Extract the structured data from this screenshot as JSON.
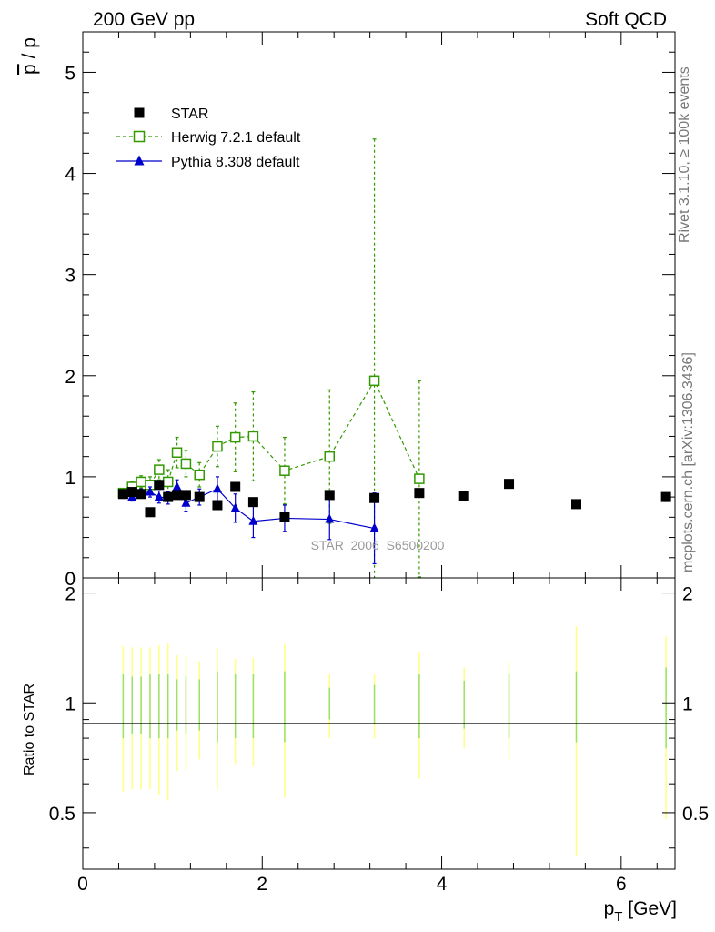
{
  "header": {
    "left_title": "200 GeV pp",
    "right_title": "Soft QCD"
  },
  "side_labels": {
    "rivet": "Rivet 3.1.10, ≥ 100k events",
    "mcplots": "mcplots.cern.ch [arXiv:1306.3436]"
  },
  "watermark": "STAR_2006_S6500200",
  "chart_data": [
    {
      "type": "scatter",
      "panel": "main",
      "ylabel": "p̅ / p",
      "ylabel_parts": {
        "bar": "p",
        "rest": " / p"
      },
      "xlim": [
        0,
        6.6
      ],
      "ylim": [
        0,
        5.4
      ],
      "y_ticks": [
        "0",
        "1",
        "2",
        "3",
        "4",
        "5"
      ],
      "x_tick_values": [
        0,
        2,
        4,
        6
      ],
      "legend_position": "top-left",
      "series": [
        {
          "name": "STAR",
          "color": "#000000",
          "marker": "filled-square",
          "x": [
            0.45,
            0.55,
            0.65,
            0.75,
            0.85,
            0.95,
            1.05,
            1.15,
            1.3,
            1.5,
            1.7,
            1.9,
            2.25,
            2.75,
            3.25,
            3.75,
            4.25,
            4.75,
            5.5,
            6.5
          ],
          "y": [
            0.83,
            0.85,
            0.83,
            0.65,
            0.92,
            0.8,
            0.82,
            0.82,
            0.8,
            0.72,
            0.9,
            0.75,
            0.6,
            0.82,
            0.79,
            0.84,
            0.81,
            0.93,
            0.73,
            0.8
          ]
        },
        {
          "name": "Herwig 7.2.1 default",
          "color": "#339900",
          "marker": "open-square",
          "line": "dashed",
          "x": [
            0.45,
            0.55,
            0.65,
            0.75,
            0.85,
            0.95,
            1.05,
            1.15,
            1.3,
            1.5,
            1.7,
            1.9,
            2.25,
            2.75,
            3.25,
            3.75
          ],
          "y": [
            0.84,
            0.9,
            0.95,
            0.92,
            1.07,
            0.95,
            1.24,
            1.13,
            1.02,
            1.3,
            1.39,
            1.4,
            1.06,
            1.2,
            1.95,
            0.98
          ],
          "err": [
            0.03,
            0.05,
            0.06,
            0.08,
            0.1,
            0.12,
            0.15,
            0.13,
            0.12,
            0.2,
            0.34,
            0.44,
            0.33,
            0.66,
            2.39,
            0.97
          ]
        },
        {
          "name": "Pythia 8.308 default",
          "color": "#0000cc",
          "marker": "filled-triangle",
          "line": "solid",
          "x": [
            0.45,
            0.55,
            0.65,
            0.75,
            0.85,
            0.95,
            1.05,
            1.15,
            1.3,
            1.5,
            1.7,
            1.9,
            2.25,
            2.75,
            3.25
          ],
          "y": [
            0.82,
            0.8,
            0.84,
            0.85,
            0.8,
            0.79,
            0.9,
            0.74,
            0.8,
            0.88,
            0.69,
            0.56,
            0.59,
            0.58,
            0.49
          ],
          "err": [
            0.03,
            0.04,
            0.04,
            0.05,
            0.06,
            0.06,
            0.07,
            0.08,
            0.08,
            0.12,
            0.14,
            0.16,
            0.13,
            0.2,
            0.35
          ]
        }
      ]
    },
    {
      "type": "scatter",
      "panel": "ratio",
      "xlabel": "p_T [GeV]",
      "xlabel_parts": {
        "p": "p",
        "sub": "T",
        "unit": " [GeV]"
      },
      "ylabel": "Ratio to STAR",
      "xlim": [
        0,
        6.6
      ],
      "ylim": [
        0.35,
        2.2
      ],
      "y_ticks": [
        0.5,
        1,
        2
      ],
      "y_tick_labels": [
        "0.5",
        "1",
        "2"
      ],
      "x_ticks": [
        "0",
        "2",
        "4",
        "6"
      ],
      "reference_line": 1,
      "bands": {
        "x": [
          0.45,
          0.55,
          0.65,
          0.75,
          0.85,
          0.95,
          1.05,
          1.15,
          1.3,
          1.5,
          1.7,
          1.9,
          2.25,
          2.75,
          3.25,
          3.75,
          4.25,
          4.75,
          5.5,
          6.5
        ],
        "stat_half": [
          0.2,
          0.18,
          0.18,
          0.2,
          0.2,
          0.2,
          0.16,
          0.18,
          0.16,
          0.22,
          0.2,
          0.2,
          0.22,
          0.1,
          0.12,
          0.2,
          0.15,
          0.2,
          0.22,
          0.25
        ],
        "total_half": [
          0.43,
          0.42,
          0.42,
          0.42,
          0.44,
          0.46,
          0.35,
          0.35,
          0.3,
          0.42,
          0.32,
          0.33,
          0.45,
          0.2,
          0.2,
          0.38,
          0.25,
          0.3,
          0.62,
          0.52
        ],
        "stat_color": "#99e266",
        "total_color": "#ffff80"
      }
    }
  ]
}
